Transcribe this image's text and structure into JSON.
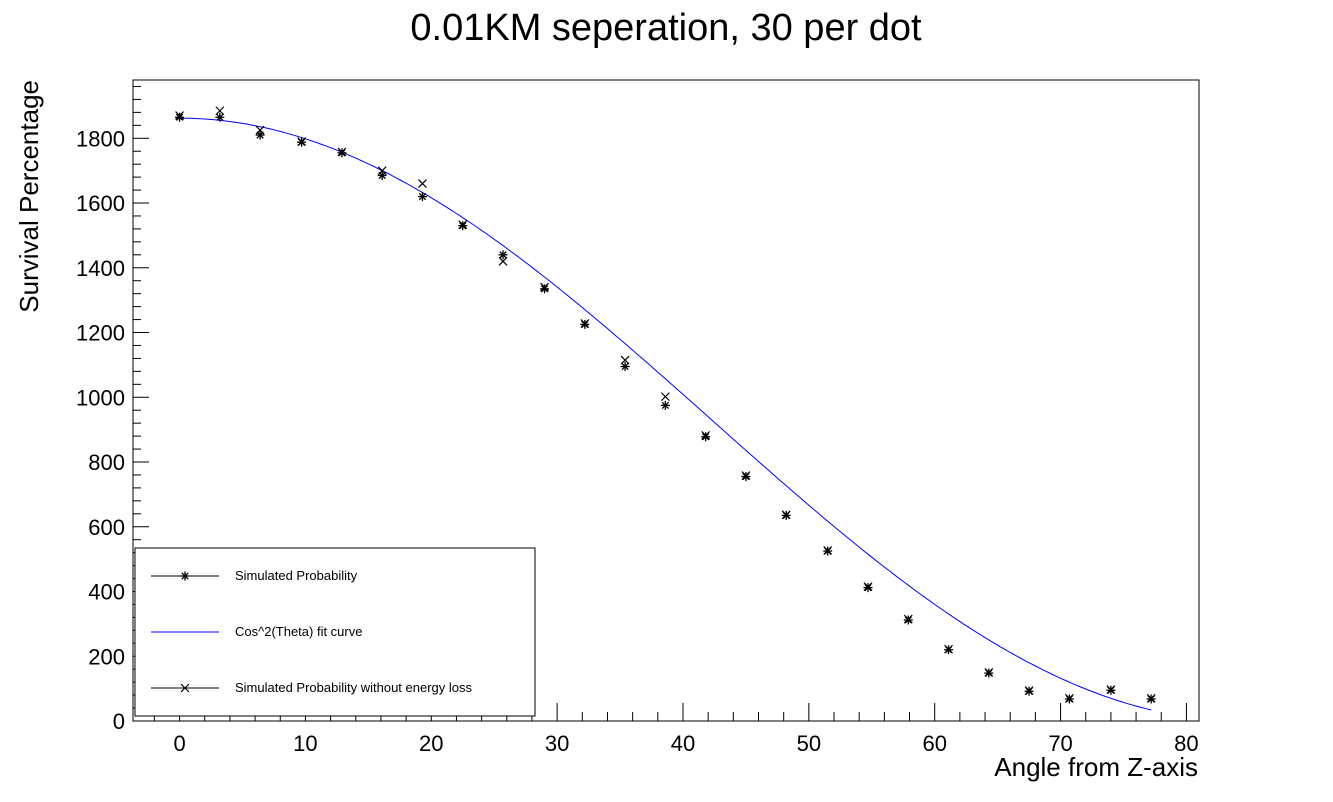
{
  "chart_data": {
    "type": "scatter",
    "title": "0.01KM seperation, 30 per dot",
    "xlabel": "Angle from Z-axis",
    "ylabel": "Survival Percentage",
    "xlim": [
      -3.7,
      81
    ],
    "ylim": [
      0,
      1980
    ],
    "x_ticks": [
      0,
      10,
      20,
      30,
      40,
      50,
      60,
      70,
      80
    ],
    "y_ticks": [
      0,
      200,
      400,
      600,
      800,
      1000,
      1200,
      1400,
      1600,
      1800
    ],
    "legend_position": "bottom-left",
    "series": [
      {
        "name": "Simulated Probability",
        "marker": "star",
        "color": "#000000",
        "points": [
          [
            0,
            1865
          ],
          [
            3.2,
            1865
          ],
          [
            6.4,
            1810
          ],
          [
            9.7,
            1788
          ],
          [
            12.9,
            1755
          ],
          [
            16.1,
            1685
          ],
          [
            19.3,
            1620
          ],
          [
            22.5,
            1530
          ],
          [
            25.7,
            1440
          ],
          [
            29.0,
            1335
          ],
          [
            32.2,
            1225
          ],
          [
            35.4,
            1095
          ],
          [
            38.6,
            975
          ],
          [
            41.8,
            878
          ],
          [
            45.0,
            755
          ],
          [
            48.2,
            635
          ],
          [
            51.5,
            525
          ],
          [
            54.7,
            412
          ],
          [
            57.9,
            312
          ],
          [
            61.1,
            220
          ],
          [
            64.3,
            148
          ],
          [
            67.5,
            92
          ],
          [
            70.7,
            68
          ],
          [
            74.0,
            95
          ],
          [
            77.2,
            68
          ]
        ]
      },
      {
        "name": "Cos^2(Theta) fit curve",
        "color": "#0000ff",
        "amplitude": 1862,
        "period": 169,
        "x_range": [
          0,
          77.2
        ]
      },
      {
        "name": "Simulated Probability without energy loss",
        "marker": "x",
        "color": "#000000",
        "points": [
          [
            0,
            1870
          ],
          [
            3.2,
            1885
          ],
          [
            6.4,
            1825
          ],
          [
            9.7,
            1790
          ],
          [
            12.9,
            1758
          ],
          [
            16.1,
            1700
          ],
          [
            19.3,
            1660
          ],
          [
            22.5,
            1533
          ],
          [
            25.7,
            1420
          ],
          [
            29.0,
            1340
          ],
          [
            32.2,
            1228
          ],
          [
            35.4,
            1115
          ],
          [
            38.6,
            1002
          ],
          [
            41.8,
            882
          ],
          [
            45.0,
            758
          ],
          [
            48.2,
            637
          ],
          [
            51.5,
            527
          ],
          [
            54.7,
            415
          ],
          [
            57.9,
            315
          ],
          [
            61.1,
            222
          ],
          [
            64.3,
            150
          ],
          [
            67.5,
            94
          ],
          [
            70.7,
            70
          ],
          [
            74.0,
            97
          ],
          [
            77.2,
            70
          ]
        ]
      }
    ]
  }
}
